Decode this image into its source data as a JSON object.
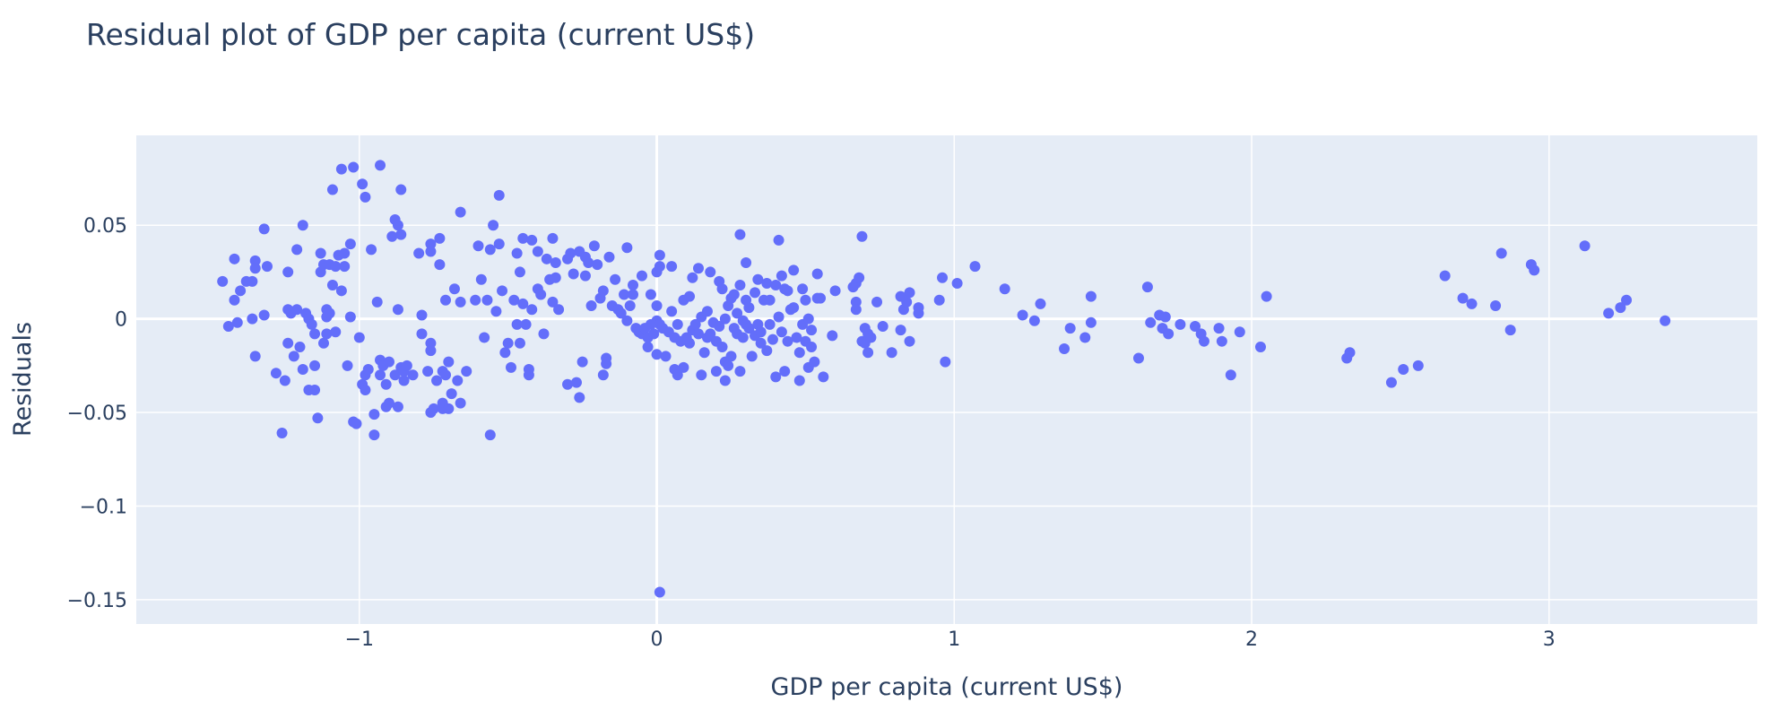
{
  "chart_data": {
    "type": "scatter",
    "title": "Residual plot of GDP per capita (current US$)",
    "xlabel": "GDP per capita (current US$)",
    "ylabel": "Residuals",
    "xlim": [
      -1.75,
      3.7
    ],
    "ylim": [
      -0.163,
      0.098
    ],
    "x_ticks": [
      {
        "v": -1,
        "label": "−1"
      },
      {
        "v": 0,
        "label": "0"
      },
      {
        "v": 1,
        "label": "1"
      },
      {
        "v": 2,
        "label": "2"
      },
      {
        "v": 3,
        "label": "3"
      }
    ],
    "y_ticks": [
      {
        "v": 0.05,
        "label": "0.05"
      },
      {
        "v": 0,
        "label": "0"
      },
      {
        "v": -0.05,
        "label": "−0.05"
      },
      {
        "v": -0.1,
        "label": "−0.1"
      },
      {
        "v": -0.15,
        "label": "−0.15"
      }
    ],
    "grid": true,
    "marker_color": "#636efa",
    "plot_bg": "#e5ecf6",
    "points": [
      [
        -1.46,
        0.02
      ],
      [
        -1.44,
        -0.004
      ],
      [
        -1.42,
        0.032
      ],
      [
        -1.42,
        0.01
      ],
      [
        -1.4,
        0.015
      ],
      [
        -1.41,
        -0.002
      ],
      [
        -1.38,
        0.02
      ],
      [
        -1.36,
        0.02
      ],
      [
        -1.35,
        0.031
      ],
      [
        -1.35,
        0.027
      ],
      [
        -1.35,
        -0.02
      ],
      [
        -1.36,
        0.0
      ],
      [
        -1.32,
        0.048
      ],
      [
        -1.31,
        0.028
      ],
      [
        -1.32,
        0.002
      ],
      [
        -1.28,
        -0.029
      ],
      [
        -1.26,
        -0.061
      ],
      [
        -1.25,
        -0.033
      ],
      [
        -1.24,
        0.025
      ],
      [
        -1.24,
        0.005
      ],
      [
        -1.24,
        -0.013
      ],
      [
        -1.23,
        0.003
      ],
      [
        -1.22,
        -0.02
      ],
      [
        -1.21,
        0.037
      ],
      [
        -1.21,
        0.005
      ],
      [
        -1.2,
        -0.015
      ],
      [
        -1.19,
        0.05
      ],
      [
        -1.19,
        -0.027
      ],
      [
        -1.18,
        0.003
      ],
      [
        -1.17,
        0.0
      ],
      [
        -1.17,
        -0.038
      ],
      [
        -1.16,
        -0.003
      ],
      [
        -1.15,
        -0.038
      ],
      [
        -1.15,
        -0.025
      ],
      [
        -1.15,
        -0.008
      ],
      [
        -1.14,
        -0.053
      ],
      [
        -1.13,
        0.025
      ],
      [
        -1.13,
        0.035
      ],
      [
        -1.12,
        0.029
      ],
      [
        -1.12,
        -0.013
      ],
      [
        -1.11,
        0.005
      ],
      [
        -1.11,
        0.001
      ],
      [
        -1.11,
        -0.008
      ],
      [
        -1.1,
        0.029
      ],
      [
        -1.1,
        0.003
      ],
      [
        -1.09,
        0.069
      ],
      [
        -1.09,
        0.018
      ],
      [
        -1.08,
        -0.007
      ],
      [
        -1.08,
        0.028
      ],
      [
        -1.07,
        0.034
      ],
      [
        -1.06,
        0.08
      ],
      [
        -1.06,
        0.015
      ],
      [
        -1.05,
        0.035
      ],
      [
        -1.05,
        0.028
      ],
      [
        -1.04,
        -0.025
      ],
      [
        -1.03,
        0.04
      ],
      [
        -1.03,
        0.001
      ],
      [
        -1.02,
        0.081
      ],
      [
        -1.02,
        -0.055
      ],
      [
        -1.01,
        -0.056
      ],
      [
        -1.0,
        -0.01
      ],
      [
        -0.99,
        0.072
      ],
      [
        -0.99,
        -0.035
      ],
      [
        -0.98,
        0.065
      ],
      [
        -0.98,
        -0.038
      ],
      [
        -0.98,
        -0.03
      ],
      [
        -0.97,
        -0.027
      ],
      [
        -0.96,
        0.037
      ],
      [
        -0.95,
        -0.051
      ],
      [
        -0.95,
        -0.062
      ],
      [
        -0.94,
        0.009
      ],
      [
        -0.93,
        0.082
      ],
      [
        -0.93,
        -0.022
      ],
      [
        -0.93,
        -0.03
      ],
      [
        -0.92,
        -0.025
      ],
      [
        -0.91,
        -0.035
      ],
      [
        -0.91,
        -0.047
      ],
      [
        -0.9,
        -0.045
      ],
      [
        -0.9,
        -0.023
      ],
      [
        -0.89,
        0.044
      ],
      [
        -0.88,
        0.053
      ],
      [
        -0.88,
        -0.03
      ],
      [
        -0.87,
        0.05
      ],
      [
        -0.87,
        -0.047
      ],
      [
        -0.87,
        0.005
      ],
      [
        -0.86,
        0.069
      ],
      [
        -0.86,
        0.045
      ],
      [
        -0.86,
        -0.026
      ],
      [
        -0.85,
        -0.033
      ],
      [
        -0.85,
        -0.028
      ],
      [
        -0.84,
        -0.025
      ],
      [
        -0.82,
        -0.03
      ],
      [
        -0.8,
        0.035
      ],
      [
        -0.79,
        0.002
      ],
      [
        -0.79,
        -0.008
      ],
      [
        -0.77,
        -0.028
      ],
      [
        -0.76,
        0.04
      ],
      [
        -0.76,
        -0.05
      ],
      [
        -0.76,
        0.036
      ],
      [
        -0.76,
        -0.013
      ],
      [
        -0.76,
        -0.017
      ],
      [
        -0.75,
        -0.048
      ],
      [
        -0.74,
        -0.033
      ],
      [
        -0.73,
        0.043
      ],
      [
        -0.73,
        0.029
      ],
      [
        -0.72,
        -0.045
      ],
      [
        -0.72,
        -0.048
      ],
      [
        -0.72,
        -0.028
      ],
      [
        -0.71,
        -0.03
      ],
      [
        -0.71,
        0.01
      ],
      [
        -0.7,
        -0.048
      ],
      [
        -0.7,
        -0.023
      ],
      [
        -0.69,
        -0.04
      ],
      [
        -0.68,
        0.016
      ],
      [
        -0.67,
        -0.033
      ],
      [
        -0.66,
        0.057
      ],
      [
        -0.66,
        -0.045
      ],
      [
        -0.66,
        0.009
      ],
      [
        -0.64,
        -0.028
      ],
      [
        -0.61,
        0.01
      ],
      [
        -0.6,
        0.039
      ],
      [
        -0.59,
        0.021
      ],
      [
        -0.58,
        -0.01
      ],
      [
        -0.57,
        0.01
      ],
      [
        -0.56,
        0.037
      ],
      [
        -0.56,
        -0.062
      ],
      [
        -0.55,
        0.05
      ],
      [
        -0.54,
        0.004
      ],
      [
        -0.53,
        0.066
      ],
      [
        -0.53,
        0.04
      ],
      [
        -0.52,
        0.015
      ],
      [
        -0.51,
        -0.018
      ],
      [
        -0.5,
        -0.013
      ],
      [
        -0.49,
        -0.026
      ],
      [
        -0.48,
        0.01
      ],
      [
        -0.47,
        0.035
      ],
      [
        -0.47,
        -0.003
      ],
      [
        -0.46,
        0.025
      ],
      [
        -0.46,
        -0.013
      ],
      [
        -0.45,
        0.008
      ],
      [
        -0.45,
        0.043
      ],
      [
        -0.44,
        -0.003
      ],
      [
        -0.43,
        -0.027
      ],
      [
        -0.43,
        -0.03
      ],
      [
        -0.42,
        0.005
      ],
      [
        -0.42,
        0.042
      ],
      [
        -0.4,
        0.036
      ],
      [
        -0.4,
        0.016
      ],
      [
        -0.39,
        0.013
      ],
      [
        -0.38,
        -0.008
      ],
      [
        -0.37,
        0.032
      ],
      [
        -0.36,
        0.021
      ],
      [
        -0.35,
        0.009
      ],
      [
        -0.35,
        0.043
      ],
      [
        -0.34,
        0.022
      ],
      [
        -0.34,
        0.03
      ],
      [
        -0.33,
        0.005
      ],
      [
        -0.3,
        -0.035
      ],
      [
        -0.3,
        0.032
      ],
      [
        -0.29,
        0.035
      ],
      [
        -0.28,
        0.024
      ],
      [
        -0.27,
        -0.034
      ],
      [
        -0.26,
        -0.042
      ],
      [
        -0.26,
        0.036
      ],
      [
        -0.25,
        -0.023
      ],
      [
        -0.24,
        0.033
      ],
      [
        -0.24,
        0.023
      ],
      [
        -0.23,
        0.03
      ],
      [
        -0.22,
        0.007
      ],
      [
        -0.21,
        0.039
      ],
      [
        -0.2,
        0.029
      ],
      [
        -0.19,
        0.011
      ],
      [
        -0.18,
        -0.03
      ],
      [
        -0.18,
        0.015
      ],
      [
        -0.17,
        -0.021
      ],
      [
        -0.17,
        -0.024
      ],
      [
        -0.16,
        0.033
      ],
      [
        -0.15,
        0.007
      ],
      [
        -0.14,
        0.021
      ],
      [
        -0.13,
        0.005
      ],
      [
        -0.12,
        0.003
      ],
      [
        -0.11,
        0.013
      ],
      [
        -0.1,
        0.038
      ],
      [
        -0.1,
        -0.001
      ],
      [
        -0.09,
        0.007
      ],
      [
        -0.08,
        0.013
      ],
      [
        -0.08,
        0.018
      ],
      [
        -0.07,
        -0.005
      ],
      [
        -0.06,
        -0.007
      ],
      [
        -0.05,
        0.023
      ],
      [
        -0.05,
        -0.008
      ],
      [
        -0.04,
        -0.005
      ],
      [
        -0.03,
        -0.015
      ],
      [
        -0.03,
        -0.01
      ],
      [
        -0.02,
        -0.003
      ],
      [
        -0.02,
        0.013
      ],
      [
        -0.01,
        -0.008
      ],
      [
        0.0,
        0.025
      ],
      [
        0.0,
        -0.019
      ],
      [
        0.0,
        0.007
      ],
      [
        0.0,
        -0.001
      ],
      [
        0.01,
        0.034
      ],
      [
        0.01,
        0.028
      ],
      [
        0.01,
        -0.003
      ],
      [
        0.01,
        -0.146
      ],
      [
        0.02,
        -0.005
      ],
      [
        0.03,
        -0.02
      ],
      [
        0.04,
        -0.007
      ],
      [
        0.05,
        0.028
      ],
      [
        0.05,
        0.004
      ],
      [
        0.06,
        -0.01
      ],
      [
        0.06,
        -0.027
      ],
      [
        0.07,
        -0.03
      ],
      [
        0.07,
        -0.003
      ],
      [
        0.08,
        -0.012
      ],
      [
        0.09,
        0.01
      ],
      [
        0.09,
        -0.026
      ],
      [
        0.1,
        -0.01
      ],
      [
        0.11,
        -0.013
      ],
      [
        0.11,
        0.012
      ],
      [
        0.12,
        0.022
      ],
      [
        0.12,
        -0.006
      ],
      [
        0.13,
        -0.003
      ],
      [
        0.14,
        -0.008
      ],
      [
        0.14,
        0.027
      ],
      [
        0.15,
        0.001
      ],
      [
        0.15,
        -0.03
      ],
      [
        0.16,
        -0.018
      ],
      [
        0.17,
        0.004
      ],
      [
        0.17,
        -0.01
      ],
      [
        0.18,
        -0.008
      ],
      [
        0.18,
        0.025
      ],
      [
        0.19,
        -0.002
      ],
      [
        0.2,
        -0.012
      ],
      [
        0.2,
        -0.028
      ],
      [
        0.21,
        -0.004
      ],
      [
        0.21,
        0.02
      ],
      [
        0.22,
        -0.015
      ],
      [
        0.22,
        0.016
      ],
      [
        0.23,
        -0.023
      ],
      [
        0.23,
        -0.033
      ],
      [
        0.23,
        0.0
      ],
      [
        0.24,
        0.007
      ],
      [
        0.24,
        -0.025
      ],
      [
        0.25,
        0.011
      ],
      [
        0.25,
        -0.02
      ],
      [
        0.26,
        0.013
      ],
      [
        0.26,
        -0.005
      ],
      [
        0.27,
        0.003
      ],
      [
        0.27,
        -0.008
      ],
      [
        0.28,
        -0.028
      ],
      [
        0.28,
        0.045
      ],
      [
        0.28,
        0.018
      ],
      [
        0.29,
        -0.001
      ],
      [
        0.29,
        -0.01
      ],
      [
        0.3,
        0.03
      ],
      [
        0.3,
        -0.003
      ],
      [
        0.3,
        0.01
      ],
      [
        0.31,
        -0.005
      ],
      [
        0.31,
        0.006
      ],
      [
        0.32,
        -0.02
      ],
      [
        0.33,
        -0.009
      ],
      [
        0.33,
        0.014
      ],
      [
        0.34,
        0.021
      ],
      [
        0.34,
        -0.003
      ],
      [
        0.35,
        -0.013
      ],
      [
        0.35,
        -0.007
      ],
      [
        0.36,
        0.01
      ],
      [
        0.37,
        -0.017
      ],
      [
        0.37,
        0.019
      ],
      [
        0.38,
        0.01
      ],
      [
        0.38,
        -0.003
      ],
      [
        0.39,
        -0.011
      ],
      [
        0.4,
        -0.031
      ],
      [
        0.4,
        0.018
      ],
      [
        0.41,
        0.001
      ],
      [
        0.41,
        0.042
      ],
      [
        0.42,
        0.023
      ],
      [
        0.42,
        -0.007
      ],
      [
        0.43,
        -0.028
      ],
      [
        0.43,
        0.016
      ],
      [
        0.44,
        0.015
      ],
      [
        0.44,
        -0.012
      ],
      [
        0.45,
        0.005
      ],
      [
        0.46,
        0.026
      ],
      [
        0.46,
        0.006
      ],
      [
        0.47,
        -0.01
      ],
      [
        0.48,
        -0.018
      ],
      [
        0.48,
        -0.033
      ],
      [
        0.49,
        0.016
      ],
      [
        0.49,
        -0.003
      ],
      [
        0.5,
        0.01
      ],
      [
        0.5,
        -0.012
      ],
      [
        0.51,
        -0.026
      ],
      [
        0.51,
        0.0
      ],
      [
        0.52,
        -0.006
      ],
      [
        0.52,
        -0.015
      ],
      [
        0.53,
        -0.023
      ],
      [
        0.54,
        0.011
      ],
      [
        0.54,
        0.024
      ],
      [
        0.55,
        0.011
      ],
      [
        0.56,
        -0.031
      ],
      [
        0.59,
        -0.009
      ],
      [
        0.6,
        0.015
      ],
      [
        0.66,
        0.017
      ],
      [
        0.67,
        0.019
      ],
      [
        0.67,
        0.009
      ],
      [
        0.67,
        0.005
      ],
      [
        0.68,
        0.022
      ],
      [
        0.69,
        -0.012
      ],
      [
        0.69,
        0.044
      ],
      [
        0.7,
        -0.013
      ],
      [
        0.7,
        -0.005
      ],
      [
        0.71,
        -0.018
      ],
      [
        0.71,
        -0.008
      ],
      [
        0.72,
        -0.01
      ],
      [
        0.74,
        0.009
      ],
      [
        0.76,
        -0.004
      ],
      [
        0.79,
        -0.018
      ],
      [
        0.82,
        -0.006
      ],
      [
        0.82,
        0.012
      ],
      [
        0.83,
        0.005
      ],
      [
        0.84,
        0.009
      ],
      [
        0.85,
        -0.012
      ],
      [
        0.85,
        0.014
      ],
      [
        0.88,
        0.006
      ],
      [
        0.88,
        0.003
      ],
      [
        0.95,
        0.01
      ],
      [
        0.96,
        0.022
      ],
      [
        0.97,
        -0.023
      ],
      [
        1.01,
        0.019
      ],
      [
        1.07,
        0.028
      ],
      [
        1.17,
        0.016
      ],
      [
        1.23,
        0.002
      ],
      [
        1.27,
        -0.001
      ],
      [
        1.29,
        0.008
      ],
      [
        1.37,
        -0.016
      ],
      [
        1.39,
        -0.005
      ],
      [
        1.44,
        -0.01
      ],
      [
        1.46,
        0.012
      ],
      [
        1.46,
        -0.002
      ],
      [
        1.62,
        -0.021
      ],
      [
        1.65,
        0.017
      ],
      [
        1.66,
        -0.002
      ],
      [
        1.69,
        0.002
      ],
      [
        1.7,
        -0.005
      ],
      [
        1.71,
        0.001
      ],
      [
        1.72,
        -0.008
      ],
      [
        1.76,
        -0.003
      ],
      [
        1.81,
        -0.004
      ],
      [
        1.83,
        -0.008
      ],
      [
        1.84,
        -0.012
      ],
      [
        1.89,
        -0.005
      ],
      [
        1.9,
        -0.012
      ],
      [
        1.93,
        -0.03
      ],
      [
        1.96,
        -0.007
      ],
      [
        2.03,
        -0.015
      ],
      [
        2.05,
        0.012
      ],
      [
        2.32,
        -0.021
      ],
      [
        2.33,
        -0.018
      ],
      [
        2.47,
        -0.034
      ],
      [
        2.51,
        -0.027
      ],
      [
        2.56,
        -0.025
      ],
      [
        2.65,
        0.023
      ],
      [
        2.71,
        0.011
      ],
      [
        2.74,
        0.008
      ],
      [
        2.82,
        0.007
      ],
      [
        2.84,
        0.035
      ],
      [
        2.87,
        -0.006
      ],
      [
        2.94,
        0.029
      ],
      [
        2.95,
        0.026
      ],
      [
        3.12,
        0.039
      ],
      [
        3.2,
        0.003
      ],
      [
        3.24,
        0.006
      ],
      [
        3.26,
        0.01
      ],
      [
        3.39,
        -0.001
      ]
    ]
  }
}
